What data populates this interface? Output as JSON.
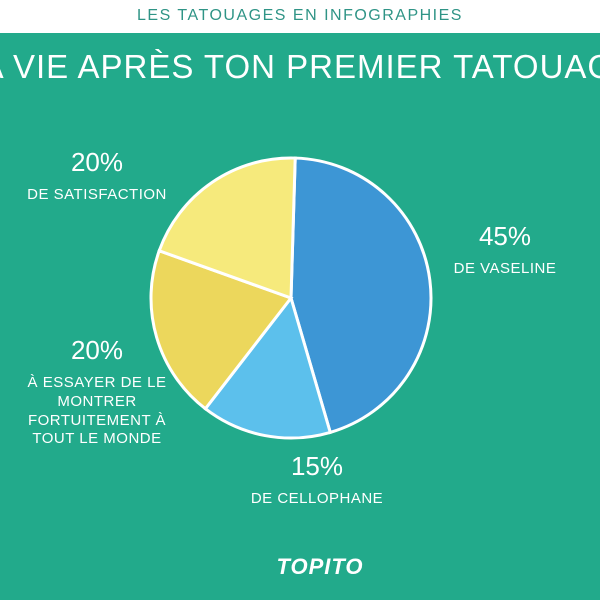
{
  "chart_data": {
    "type": "pie",
    "kicker": "LES TATOUAGES EN INFOGRAPHIES",
    "title": "TA VIE APRÈS TON PREMIER TATOUAGE",
    "categories": [
      "DE VASELINE",
      "DE CELLOPHANE",
      "À ESSAYER DE LE MONTRER FORTUITEMENT À TOUT LE MONDE",
      "DE SATISFACTION"
    ],
    "values": [
      45,
      15,
      20,
      20
    ],
    "value_labels": [
      "45%",
      "15%",
      "20%",
      "20%"
    ],
    "colors": [
      "#3d96d5",
      "#5cc0ec",
      "#ecd75c",
      "#f6ea7c"
    ],
    "brand": "TOPITO"
  }
}
